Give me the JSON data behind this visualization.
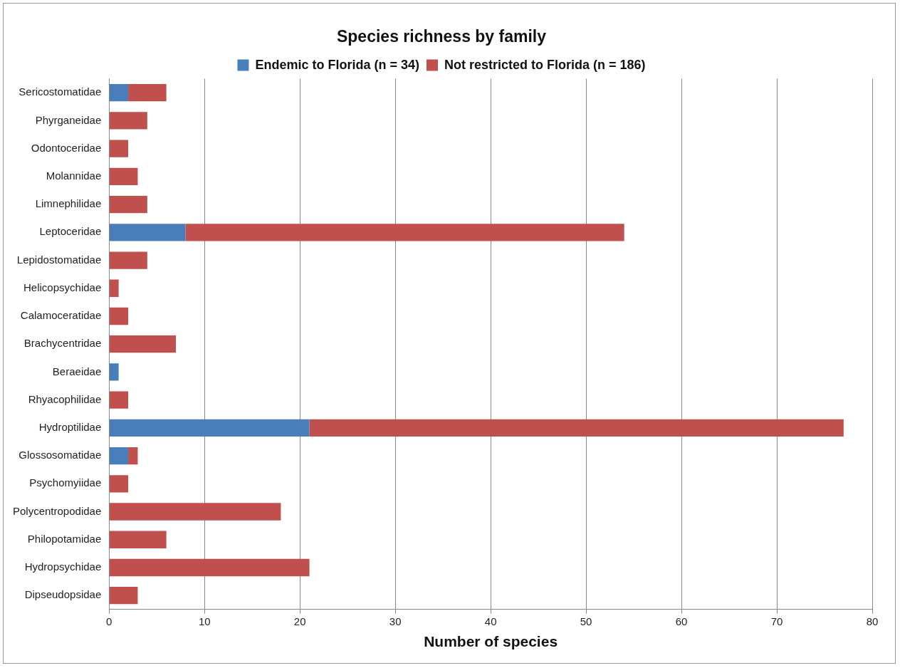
{
  "chart_data": {
    "type": "bar",
    "orientation": "horizontal",
    "stacked": true,
    "title": "Species richness by family",
    "xlabel": "Number of species",
    "categories": [
      "Sericostomatidae",
      "Phyrganeidae",
      "Odontoceridae",
      "Molannidae",
      "Limnephilidae",
      "Leptoceridae",
      "Lepidostomatidae",
      "Helicopsychidae",
      "Calamoceratidae",
      "Brachycentridae",
      "Beraeidae",
      "Rhyacophilidae",
      "Hydroptilidae",
      "Glossosomatidae",
      "Psychomyiidae",
      "Polycentropodidae",
      "Philopotamidae",
      "Hydropsychidae",
      "Dipseudopsidae"
    ],
    "series": [
      {
        "name": "Endemic to Florida (n = 34)",
        "color": "#4a7ebb",
        "values": [
          2,
          null,
          null,
          null,
          null,
          8,
          null,
          null,
          null,
          null,
          1,
          null,
          21,
          2,
          null,
          null,
          null,
          null,
          null
        ]
      },
      {
        "name": "Not restricted to Florida (n = 186)",
        "color": "#c0504d",
        "values": [
          4,
          4,
          2,
          3,
          4,
          46,
          4,
          1,
          2,
          7,
          null,
          2,
          56,
          1,
          2,
          18,
          6,
          21,
          3
        ]
      }
    ],
    "xlim": [
      0,
      80
    ],
    "xticks": [
      0,
      10,
      20,
      30,
      40,
      50,
      60,
      70,
      80
    ],
    "grid": "x",
    "legend": "top"
  }
}
